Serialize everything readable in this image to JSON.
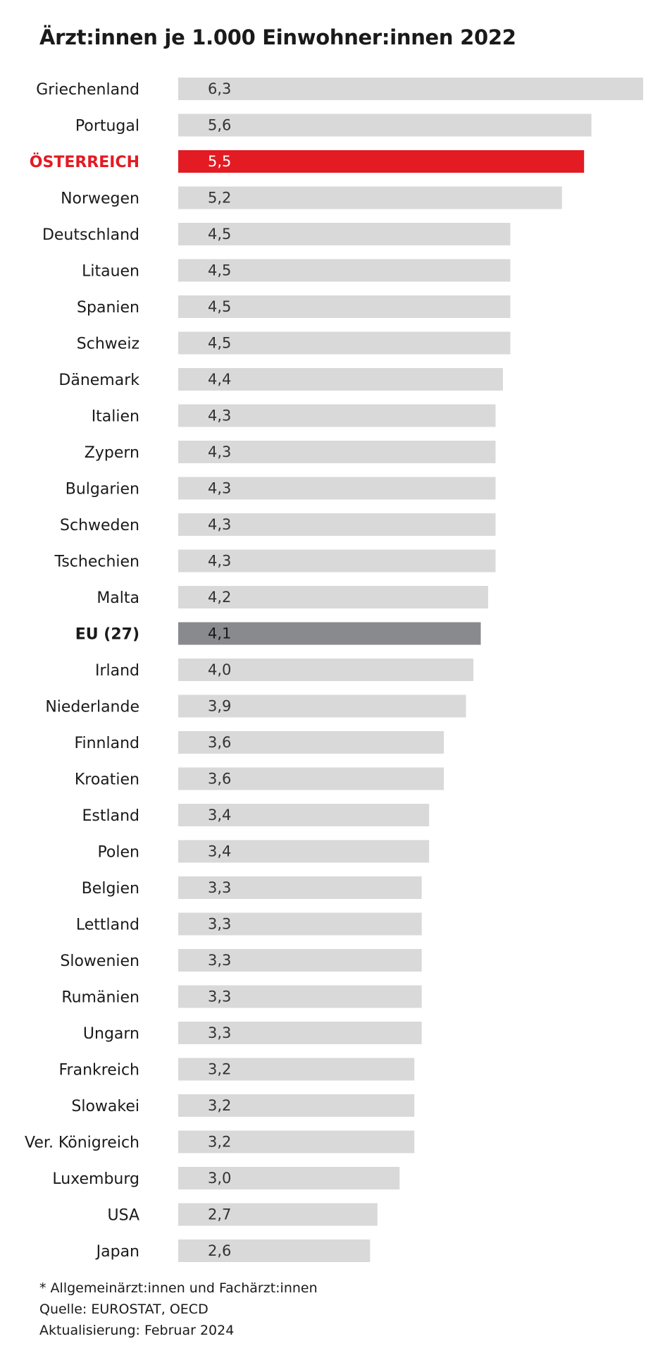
{
  "title": "Ärzt:innen je 1.000 Einwohner:innen 2022",
  "colors": {
    "bar_default": "#d9d9da",
    "bar_highlight": "#e31b23",
    "bar_eu": "#898a8e",
    "label_highlight": "#e31b23"
  },
  "chart_data": {
    "type": "bar",
    "orientation": "horizontal",
    "title": "Ärzt:innen je 1.000 Einwohner:innen 2022",
    "xlabel": "",
    "ylabel": "",
    "xlim": [
      0,
      6.3
    ],
    "grid": false,
    "highlight": "ÖSTERREICH",
    "reference": "EU (27)",
    "categories": [
      "Griechenland",
      "Portugal",
      "ÖSTERREICH",
      "Norwegen",
      "Deutschland",
      "Litauen",
      "Spanien",
      "Schweiz",
      "Dänemark",
      "Italien",
      "Zypern",
      "Bulgarien",
      "Schweden",
      "Tschechien",
      "Malta",
      "EU (27)",
      "Irland",
      "Niederlande",
      "Finnland",
      "Kroatien",
      "Estland",
      "Polen",
      "Belgien",
      "Lettland",
      "Slowenien",
      "Rumänien",
      "Ungarn",
      "Frankreich",
      "Slowakei",
      "Ver. Königreich",
      "Luxemburg",
      "USA",
      "Japan"
    ],
    "values": [
      6.3,
      5.6,
      5.5,
      5.2,
      4.5,
      4.5,
      4.5,
      4.5,
      4.4,
      4.3,
      4.3,
      4.3,
      4.3,
      4.3,
      4.2,
      4.1,
      4.0,
      3.9,
      3.6,
      3.6,
      3.4,
      3.4,
      3.3,
      3.3,
      3.3,
      3.3,
      3.3,
      3.2,
      3.2,
      3.2,
      3.0,
      2.7,
      2.6
    ],
    "value_labels": [
      "6,3",
      "5,6",
      "5,5",
      "5,2",
      "4,5",
      "4,5",
      "4,5",
      "4,5",
      "4,4",
      "4,3",
      "4,3",
      "4,3",
      "4,3",
      "4,3",
      "4,2",
      "4,1",
      "4,0",
      "3,9",
      "3,6",
      "3,6",
      "3,4",
      "3,4",
      "3,3",
      "3,3",
      "3,3",
      "3,3",
      "3,3",
      "3,2",
      "3,2",
      "3,2",
      "3,0",
      "2,7",
      "2,6"
    ]
  },
  "notes": {
    "footnote": "* Allgemeinärzt:innen und Fachärzt:innen",
    "source": "Quelle: EUROSTAT, OECD",
    "updated": "Aktualisierung: Februar 2024"
  }
}
